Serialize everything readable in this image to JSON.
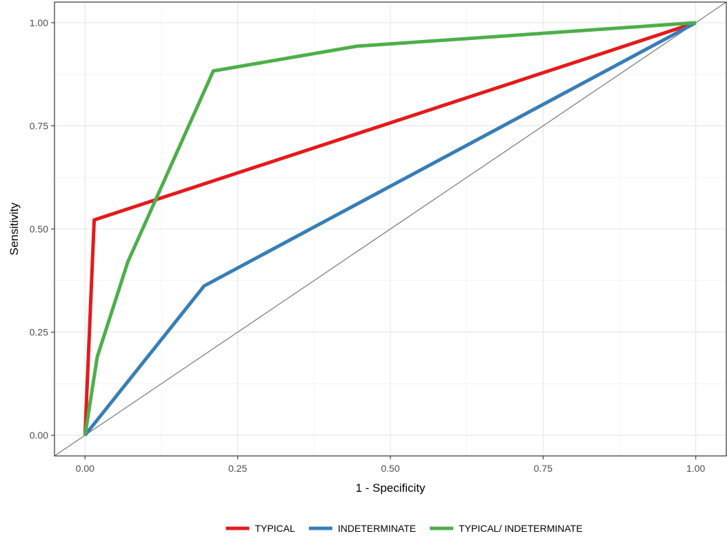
{
  "chart_data": {
    "type": "line",
    "xlabel": "1 - Specificity",
    "ylabel": "Sensitivity",
    "xlim": [
      -0.05,
      1.05
    ],
    "ylim": [
      -0.05,
      1.05
    ],
    "x_ticks": [
      "0.00",
      "0.25",
      "0.50",
      "0.75",
      "1.00"
    ],
    "y_ticks": [
      "0.00",
      "0.25",
      "0.50",
      "0.75",
      "1.00"
    ],
    "x_tick_values": [
      0,
      0.25,
      0.5,
      0.75,
      1
    ],
    "y_tick_values": [
      0,
      0.25,
      0.5,
      0.75,
      1
    ],
    "grid": true,
    "legend_position": "bottom",
    "reference_line": {
      "x": [
        0,
        1
      ],
      "y": [
        0,
        1
      ],
      "color": "#808080"
    },
    "series": [
      {
        "name": "TYPICAL",
        "color": "#E41A1C",
        "x": [
          0,
          0.015,
          1
        ],
        "y": [
          0,
          0.522,
          1
        ]
      },
      {
        "name": "INDETERMINATE",
        "color": "#377EB8",
        "x": [
          0,
          0.195,
          1
        ],
        "y": [
          0,
          0.362,
          1
        ]
      },
      {
        "name": "TYPICAL/ INDETERMINATE",
        "color": "#4DAF4A",
        "x": [
          0,
          0.02,
          0.07,
          0.21,
          0.445,
          1
        ],
        "y": [
          0,
          0.19,
          0.42,
          0.883,
          0.943,
          1
        ]
      }
    ]
  }
}
